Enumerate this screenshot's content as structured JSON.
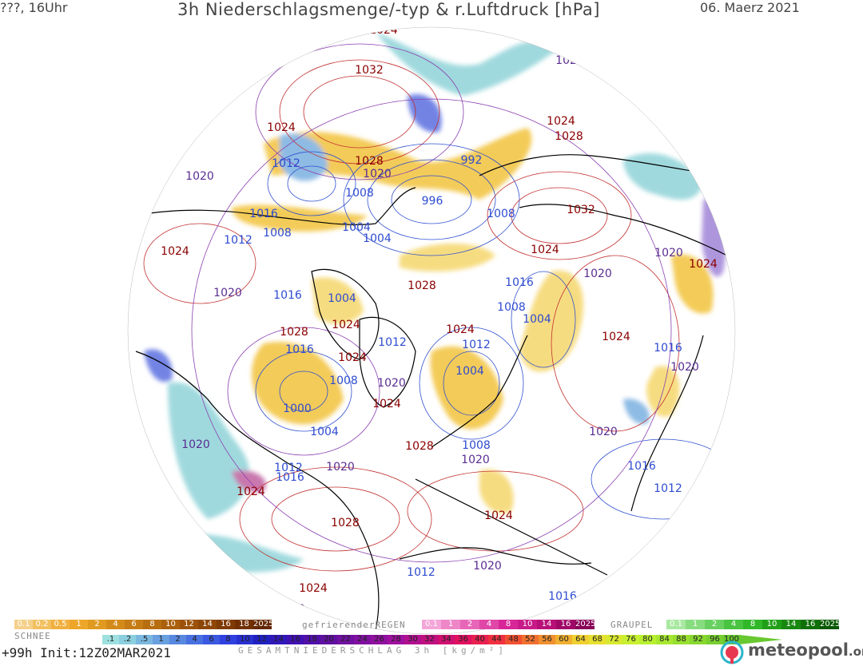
{
  "header": {
    "left": "???, 16Uhr",
    "title": "3h Niederschlagsmenge/-typ & r.Luftdruck [hPa]",
    "date": "06. Maerz 2021"
  },
  "isobar_labels": [
    {
      "text": "1024",
      "color": "#8b0000"
    },
    {
      "text": "1032",
      "color": "#8b0000"
    },
    {
      "text": "1020",
      "color": "#5a2d91"
    },
    {
      "text": "1024",
      "color": "#8b0000"
    },
    {
      "text": "1028",
      "color": "#8b0000"
    },
    {
      "text": "1012",
      "color": "#2e4bd0"
    },
    {
      "text": "1020",
      "color": "#5a2d91"
    },
    {
      "text": "1008",
      "color": "#2e4bd0"
    },
    {
      "text": "996",
      "color": "#2e4bd0"
    },
    {
      "text": "992",
      "color": "#2e4bd0"
    },
    {
      "text": "1024",
      "color": "#8b0000"
    },
    {
      "text": "1028",
      "color": "#8b0000"
    },
    {
      "text": "1020",
      "color": "#5a2d91"
    },
    {
      "text": "1016",
      "color": "#2e4bd0"
    },
    {
      "text": "1004",
      "color": "#2e4bd0"
    },
    {
      "text": "1004",
      "color": "#2e4bd0"
    },
    {
      "text": "1008",
      "color": "#2e4bd0"
    },
    {
      "text": "1032",
      "color": "#8b0000"
    },
    {
      "text": "1012",
      "color": "#2e4bd0"
    },
    {
      "text": "1008",
      "color": "#2e4bd0"
    },
    {
      "text": "1024",
      "color": "#8b0000"
    },
    {
      "text": "1020",
      "color": "#5a2d91"
    },
    {
      "text": "1028",
      "color": "#8b0000"
    },
    {
      "text": "1024",
      "color": "#8b0000"
    },
    {
      "text": "1020",
      "color": "#5a2d91"
    },
    {
      "text": "1016",
      "color": "#2e4bd0"
    },
    {
      "text": "1016",
      "color": "#2e4bd0"
    },
    {
      "text": "1004",
      "color": "#2e4bd0"
    },
    {
      "text": "1020",
      "color": "#5a2d91"
    },
    {
      "text": "1008",
      "color": "#2e4bd0"
    },
    {
      "text": "1004",
      "color": "#2e4bd0"
    },
    {
      "text": "1028",
      "color": "#8b0000"
    },
    {
      "text": "1024",
      "color": "#8b0000"
    },
    {
      "text": "1024",
      "color": "#8b0000"
    },
    {
      "text": "1016",
      "color": "#2e4bd0"
    },
    {
      "text": "1024",
      "color": "#8b0000"
    },
    {
      "text": "1012",
      "color": "#2e4bd0"
    },
    {
      "text": "1012",
      "color": "#2e4bd0"
    },
    {
      "text": "1024",
      "color": "#8b0000"
    },
    {
      "text": "1016",
      "color": "#2e4bd0"
    },
    {
      "text": "1004",
      "color": "#2e4bd0"
    },
    {
      "text": "1008",
      "color": "#2e4bd0"
    },
    {
      "text": "1020",
      "color": "#5a2d91"
    },
    {
      "text": "1020",
      "color": "#5a2d91"
    },
    {
      "text": "1000",
      "color": "#2e4bd0"
    },
    {
      "text": "1024",
      "color": "#8b0000"
    },
    {
      "text": "1004",
      "color": "#2e4bd0"
    },
    {
      "text": "1020",
      "color": "#5a2d91"
    },
    {
      "text": "1012",
      "color": "#2e4bd0"
    },
    {
      "text": "1016",
      "color": "#2e4bd0"
    },
    {
      "text": "1020",
      "color": "#5a2d91"
    },
    {
      "text": "1028",
      "color": "#8b0000"
    },
    {
      "text": "1008",
      "color": "#2e4bd0"
    },
    {
      "text": "1020",
      "color": "#5a2d91"
    },
    {
      "text": "1020",
      "color": "#5a2d91"
    },
    {
      "text": "1016",
      "color": "#2e4bd0"
    },
    {
      "text": "1012",
      "color": "#2e4bd0"
    },
    {
      "text": "1024",
      "color": "#8b0000"
    },
    {
      "text": "1028",
      "color": "#8b0000"
    },
    {
      "text": "1024",
      "color": "#8b0000"
    },
    {
      "text": "1012",
      "color": "#2e4bd0"
    },
    {
      "text": "1020",
      "color": "#5a2d91"
    },
    {
      "text": "1016",
      "color": "#2e4bd0"
    },
    {
      "text": "1024",
      "color": "#8b0000"
    },
    {
      "text": "1020",
      "color": "#5a2d91"
    },
    {
      "text": "1024",
      "color": "#8b0000"
    }
  ],
  "legend": {
    "snow_label": "SCHNEE",
    "snow_values": [
      "0.1",
      "0.2",
      "0.5",
      "1",
      "2",
      "4",
      "6",
      "8",
      "10",
      "12",
      "14",
      "16",
      "18",
      "2025+"
    ],
    "snow_colors": [
      "#f5d08a",
      "#f2c060",
      "#f0b040",
      "#eea628",
      "#e09a20",
      "#d48a18",
      "#c67c14",
      "#b86e10",
      "#aa600c",
      "#9c5208",
      "#8e4606",
      "#803a04",
      "#723002",
      "#642600"
    ],
    "freezing_rain_label": "gefrierenderREGEN",
    "freezing_rain_values": [
      "0.1",
      "1",
      "2",
      "4",
      "8",
      "10",
      "14",
      "16",
      "2025+"
    ],
    "freezing_rain_colors": [
      "#f4a6d8",
      "#ee86c8",
      "#e866b8",
      "#e046a8",
      "#d82698",
      "#c81a88",
      "#b81078",
      "#a00868",
      "#880058"
    ],
    "graupel_label": "GRAUPEL",
    "graupel_values": [
      "0.1",
      "1",
      "2",
      "4",
      "8",
      "10",
      "14",
      "16",
      "2025+"
    ],
    "graupel_colors": [
      "#a8e8a0",
      "#88dc80",
      "#68d060",
      "#48c440",
      "#30b828",
      "#20a018",
      "#188810",
      "#107008",
      "#085800"
    ],
    "total_values": [
      ".1",
      ".2",
      ".5",
      "1",
      "2",
      "4",
      "6",
      "8",
      "10",
      "12",
      "14",
      "16",
      "18",
      "20",
      "22",
      "24",
      "26",
      "28",
      "30",
      "32",
      "34",
      "36",
      "40",
      "44",
      "48",
      "52",
      "56",
      "60",
      "64",
      "68",
      "72",
      "76",
      "80",
      "84",
      "88",
      "92",
      "96",
      "100"
    ],
    "total_colors": [
      "#9ee0e0",
      "#8cd0e0",
      "#7ab8e0",
      "#68a0e0",
      "#5888e0",
      "#4870e0",
      "#3a58e0",
      "#3040e0",
      "#2830d0",
      "#2020c0",
      "#3018b8",
      "#4010b0",
      "#5010a8",
      "#6010a0",
      "#7010a0",
      "#8010a0",
      "#9010a0",
      "#a010a0",
      "#b01090",
      "#c01080",
      "#d01070",
      "#e01060",
      "#e82050",
      "#f03040",
      "#f05030",
      "#f07030",
      "#f09030",
      "#f0b030",
      "#f0d030",
      "#e8e030",
      "#d8e830",
      "#c8f030",
      "#b8f030",
      "#a8e830",
      "#98e030",
      "#88d830",
      "#78d030",
      "#68c830"
    ],
    "total_label": "GESAMTNIEDERSCHLAG 3h [kg/m²]"
  },
  "footer": {
    "init": "+99h Init:12Z02MAR2021"
  },
  "logo": {
    "text": "meteopool",
    "suffix": ".org"
  }
}
